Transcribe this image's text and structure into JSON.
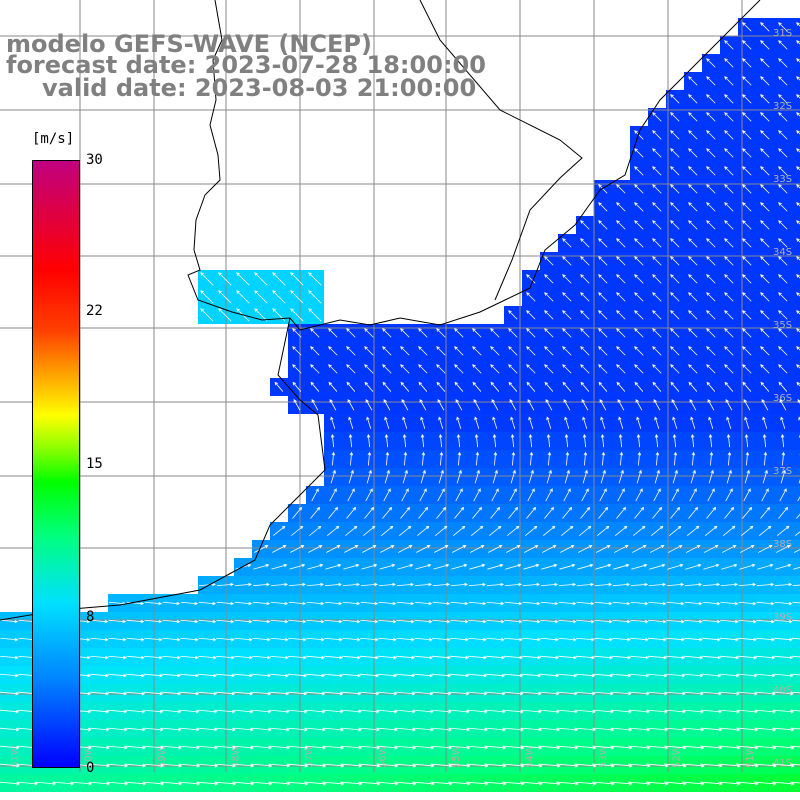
{
  "title": {
    "model": "modelo GEFS-WAVE (NCEP)",
    "forecast": "forecast date: 2023-07-28 18:00:00",
    "valid": "valid date: 2023-08-03 21:00:00"
  },
  "colorbar": {
    "unit": "[m/s]",
    "ticks": [
      "30",
      "22",
      "15",
      "8",
      "0"
    ],
    "range": [
      0,
      30
    ],
    "colors": [
      "#0000ff",
      "#0080ff",
      "#00e0ff",
      "#00ff80",
      "#00ff00",
      "#ffff00",
      "#ffa000",
      "#ff0000",
      "#c00080"
    ]
  },
  "map": {
    "variable": "wind speed and direction",
    "land_color": "#ffffff",
    "coastline_color": "#000000",
    "grid_color": "#808080",
    "grid_label_color": "#b0b0b0",
    "lat_labels": [
      "31S",
      "32S",
      "33S",
      "34S",
      "35S",
      "36S",
      "37S",
      "38S",
      "39S",
      "40S",
      "41S"
    ],
    "lon_labels": [
      "61W",
      "60W",
      "59W",
      "58W",
      "57W",
      "56W",
      "55W",
      "54W",
      "53W",
      "52W",
      "51W"
    ],
    "wind_arrow_color": "#ffffff"
  }
}
